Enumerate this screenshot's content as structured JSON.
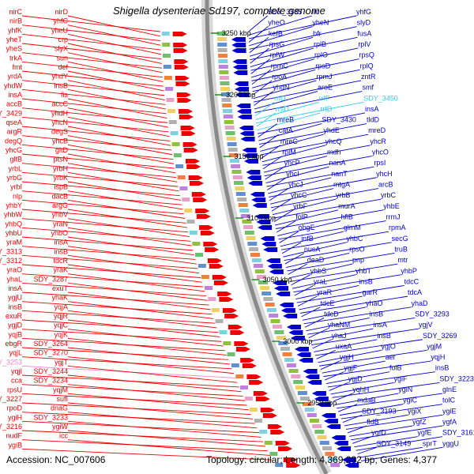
{
  "title": "Shigella dysenteriae Sd197, complete genome",
  "accession_label": "Accession: NC_007606",
  "topology_label": "Topology: circular; Length: 4,369,232 bp; Genes: 4,377",
  "colors": {
    "forward_strand": "#ee0000",
    "reverse_strand": "#0000cc",
    "rna_gene": "#33ccee",
    "pseudogene": "#ee88cc",
    "backbone": "#8a8a8a",
    "tick_mark": "#228822"
  },
  "kbp_ticks": [
    {
      "label": "3250 kbp"
    },
    {
      "label": "3200 kbp"
    },
    {
      "label": "3150 kbp"
    },
    {
      "label": "3100 kbp"
    },
    {
      "label": "3050 kbp"
    },
    {
      "label": "3000 kbp"
    },
    {
      "label": "2950 kbp"
    }
  ],
  "left_labels": [
    {
      "text": "nirC"
    },
    {
      "text": "nirD"
    },
    {
      "text": "nirB"
    },
    {
      "text": "yhfC"
    },
    {
      "text": "yhfK"
    },
    {
      "text": "yheU"
    },
    {
      "text": "yheT"
    },
    {
      "text": "crp"
    },
    {
      "text": "yheS"
    },
    {
      "text": "slyX"
    },
    {
      "text": "trkA"
    },
    {
      "text": "sun"
    },
    {
      "text": "fmt"
    },
    {
      "text": "def"
    },
    {
      "text": "yrdA"
    },
    {
      "text": "yhdY"
    },
    {
      "text": "yhdW"
    },
    {
      "text": "insB"
    },
    {
      "text": "insA"
    },
    {
      "text": "fis"
    },
    {
      "text": "accB"
    },
    {
      "text": "accC"
    },
    {
      "text": "SDY_3429"
    },
    {
      "text": "yhdH"
    },
    {
      "text": "qseA"
    },
    {
      "text": "yhcN"
    },
    {
      "text": "argR"
    },
    {
      "text": "degS"
    },
    {
      "text": "degQ"
    },
    {
      "text": "yhcB"
    },
    {
      "text": "yhcG"
    },
    {
      "text": "gltD"
    },
    {
      "text": "gltB"
    },
    {
      "text": "ptsN"
    },
    {
      "text": "yrbL"
    },
    {
      "text": "yrbH"
    },
    {
      "text": "yrbG"
    },
    {
      "text": "yrbK"
    },
    {
      "text": "yrbI"
    },
    {
      "text": "ispB"
    },
    {
      "text": "nlp"
    },
    {
      "text": "dacB"
    },
    {
      "text": "yhbY"
    },
    {
      "text": "argG"
    },
    {
      "text": "yhbW"
    },
    {
      "text": "yhbV"
    },
    {
      "text": "yhbQ"
    },
    {
      "text": "yraN"
    },
    {
      "text": "yhbU"
    },
    {
      "text": "yhbO"
    },
    {
      "text": "yraM"
    },
    {
      "text": "insA"
    },
    {
      "text": "SDY_3313"
    },
    {
      "text": "insB"
    },
    {
      "text": "SDY_3312"
    },
    {
      "text": "tdcR"
    },
    {
      "text": "yraO"
    },
    {
      "text": "yraK"
    },
    {
      "text": "yhaL"
    },
    {
      "text": "SDY_3287"
    },
    {
      "text": "insA"
    },
    {
      "text": "exuT"
    },
    {
      "text": "ygjU"
    },
    {
      "text": "yhaK"
    },
    {
      "text": "insB"
    },
    {
      "text": "yqjA"
    },
    {
      "text": "exuR"
    },
    {
      "text": "yqjR"
    },
    {
      "text": "ygjD"
    },
    {
      "text": "yqjC"
    },
    {
      "text": "yqjB"
    },
    {
      "text": "yqjK"
    },
    {
      "text": "ebgR"
    },
    {
      "text": "SDY_3264"
    },
    {
      "text": "yqjL"
    },
    {
      "text": "SDY_3270"
    },
    {
      "text": "SDY_3253",
      "kind": "pseudo"
    },
    {
      "text": "ygjT"
    },
    {
      "text": "yqjI"
    },
    {
      "text": "SDY_3244"
    },
    {
      "text": "cca"
    },
    {
      "text": "SDY_3234"
    },
    {
      "text": "rpsU"
    },
    {
      "text": "yqjM"
    },
    {
      "text": "SDY_3227"
    },
    {
      "text": "sufI"
    },
    {
      "text": "rpoD"
    },
    {
      "text": "dnaG"
    },
    {
      "text": "ygiH"
    },
    {
      "text": "SDY_3233"
    },
    {
      "text": "SDY_3216"
    },
    {
      "text": "ygiW"
    },
    {
      "text": "nudF"
    },
    {
      "text": "icc"
    },
    {
      "text": "ygiB"
    }
  ],
  "right_labels": [
    {
      "text": "SDY_3535"
    },
    {
      "text": "fic"
    },
    {
      "text": "yhfG"
    },
    {
      "text": "yheO"
    },
    {
      "text": "yheN"
    },
    {
      "text": "slyD"
    },
    {
      "text": "kefB"
    },
    {
      "text": "bfr"
    },
    {
      "text": "fusA"
    },
    {
      "text": "rpsG"
    },
    {
      "text": "rplB"
    },
    {
      "text": "rplV"
    },
    {
      "text": "rplW"
    },
    {
      "text": "rplO"
    },
    {
      "text": "rpsQ"
    },
    {
      "text": "rpmC"
    },
    {
      "text": "rpsD"
    },
    {
      "text": "rplQ"
    },
    {
      "text": "rpoA"
    },
    {
      "text": "rpmJ"
    },
    {
      "text": "zntR"
    },
    {
      "text": "yhdN"
    },
    {
      "text": "aroE"
    },
    {
      "text": "smf"
    },
    {
      "text": "rrlD",
      "kind": "rna"
    },
    {
      "text": "rrfF",
      "kind": "rna"
    },
    {
      "text": "SDY_3450",
      "kind": "rna"
    },
    {
      "text": "rrsD",
      "kind": "rna"
    },
    {
      "text": "rrfD",
      "kind": "rna"
    },
    {
      "text": "insA"
    },
    {
      "text": "mreB"
    },
    {
      "text": "SDY_3430"
    },
    {
      "text": "tldD"
    },
    {
      "text": "cafA"
    },
    {
      "text": "yhdE"
    },
    {
      "text": "mreD"
    },
    {
      "text": "mreC"
    },
    {
      "text": "yhcQ"
    },
    {
      "text": "yhcR"
    },
    {
      "text": "rplM"
    },
    {
      "text": "mdh"
    },
    {
      "text": "yhcO"
    },
    {
      "text": "yhcP"
    },
    {
      "text": "nanA"
    },
    {
      "text": "rpsI"
    },
    {
      "text": "yhcI"
    },
    {
      "text": "nanT"
    },
    {
      "text": "yhcH"
    },
    {
      "text": "yhcJ"
    },
    {
      "text": "mtgA"
    },
    {
      "text": "arcB"
    },
    {
      "text": "yhcC"
    },
    {
      "text": "yrbB"
    },
    {
      "text": "yrbC"
    },
    {
      "text": "yrbF"
    },
    {
      "text": "murA"
    },
    {
      "text": "yhbE"
    },
    {
      "text": "folP"
    },
    {
      "text": "hflB"
    },
    {
      "text": "rrmJ"
    },
    {
      "text": "obgE"
    },
    {
      "text": "glmM"
    },
    {
      "text": "rpmA"
    },
    {
      "text": "infB"
    },
    {
      "text": "yhbC"
    },
    {
      "text": "secG"
    },
    {
      "text": "nusA"
    },
    {
      "text": "rpsO"
    },
    {
      "text": "truB"
    },
    {
      "text": "deaD"
    },
    {
      "text": "pnp"
    },
    {
      "text": "mtr"
    },
    {
      "text": "yhbS"
    },
    {
      "text": "yhbT"
    },
    {
      "text": "yhbP"
    },
    {
      "text": "yraL"
    },
    {
      "text": "insB"
    },
    {
      "text": "tdcC"
    },
    {
      "text": "yraR"
    },
    {
      "text": "garR"
    },
    {
      "text": "tdcA"
    },
    {
      "text": "tdcE"
    },
    {
      "text": "yhaO"
    },
    {
      "text": "yhaD"
    },
    {
      "text": "tdcD"
    },
    {
      "text": "insB"
    },
    {
      "text": "SDY_3293"
    },
    {
      "text": "yhaNM"
    },
    {
      "text": "insA"
    },
    {
      "text": "ygjV"
    },
    {
      "text": "yhaJ"
    },
    {
      "text": "insB"
    },
    {
      "text": "SDY_3269"
    },
    {
      "text": "uxaA"
    },
    {
      "text": "ygjO"
    },
    {
      "text": "ygjM"
    },
    {
      "text": "ygjH"
    },
    {
      "text": "aer"
    },
    {
      "text": "yqjH"
    },
    {
      "text": "ygjF"
    },
    {
      "text": "folB"
    },
    {
      "text": "insB"
    },
    {
      "text": "ygjD"
    },
    {
      "text": "ygiF"
    },
    {
      "text": "SDY_3223"
    },
    {
      "text": "yqhH"
    },
    {
      "text": "ygiN"
    },
    {
      "text": "glnE"
    },
    {
      "text": "mdaB"
    },
    {
      "text": "ygiC"
    },
    {
      "text": "tolC"
    },
    {
      "text": "SDY_3193"
    },
    {
      "text": "ygiX"
    },
    {
      "text": "ygiE"
    },
    {
      "text": "fldB"
    },
    {
      "text": "ygfZ"
    },
    {
      "text": "ygfA"
    },
    {
      "text": "ygfD"
    },
    {
      "text": "ygfE"
    },
    {
      "text": "SDY_3161"
    },
    {
      "text": "SDY_3149"
    },
    {
      "text": "sprT"
    },
    {
      "text": "yggU"
    }
  ]
}
